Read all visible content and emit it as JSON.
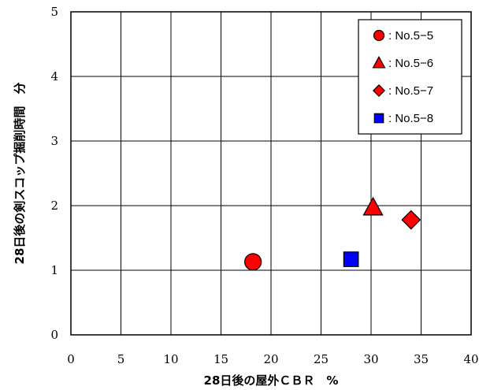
{
  "chart_data": {
    "type": "scatter",
    "xlabel": "28日後の屋外ＣＢＲ　%",
    "ylabel": "28日後の剣スコップ掘削時間　分",
    "xlim": [
      0,
      40
    ],
    "ylim": [
      0,
      5
    ],
    "xticks": [
      "0",
      "5",
      "10",
      "15",
      "20",
      "25",
      "30",
      "35",
      "40"
    ],
    "yticks": [
      "0",
      "1",
      "2",
      "3",
      "4",
      "5"
    ],
    "grid": true,
    "legend_position": "top-right",
    "series": [
      {
        "name": ": No.5−5",
        "marker": "circle",
        "color": "#ff0000",
        "points": [
          {
            "x": 18.2,
            "y": 1.13
          }
        ]
      },
      {
        "name": ": No.5−6",
        "marker": "triangle",
        "color": "#ff0000",
        "points": [
          {
            "x": 30.2,
            "y": 1.97
          }
        ]
      },
      {
        "name": ": No.5−7",
        "marker": "diamond",
        "color": "#ff0000",
        "points": [
          {
            "x": 34.0,
            "y": 1.78
          }
        ]
      },
      {
        "name": ": No.5−8",
        "marker": "square",
        "color": "#0000ff",
        "points": [
          {
            "x": 28.0,
            "y": 1.17
          }
        ]
      }
    ]
  }
}
